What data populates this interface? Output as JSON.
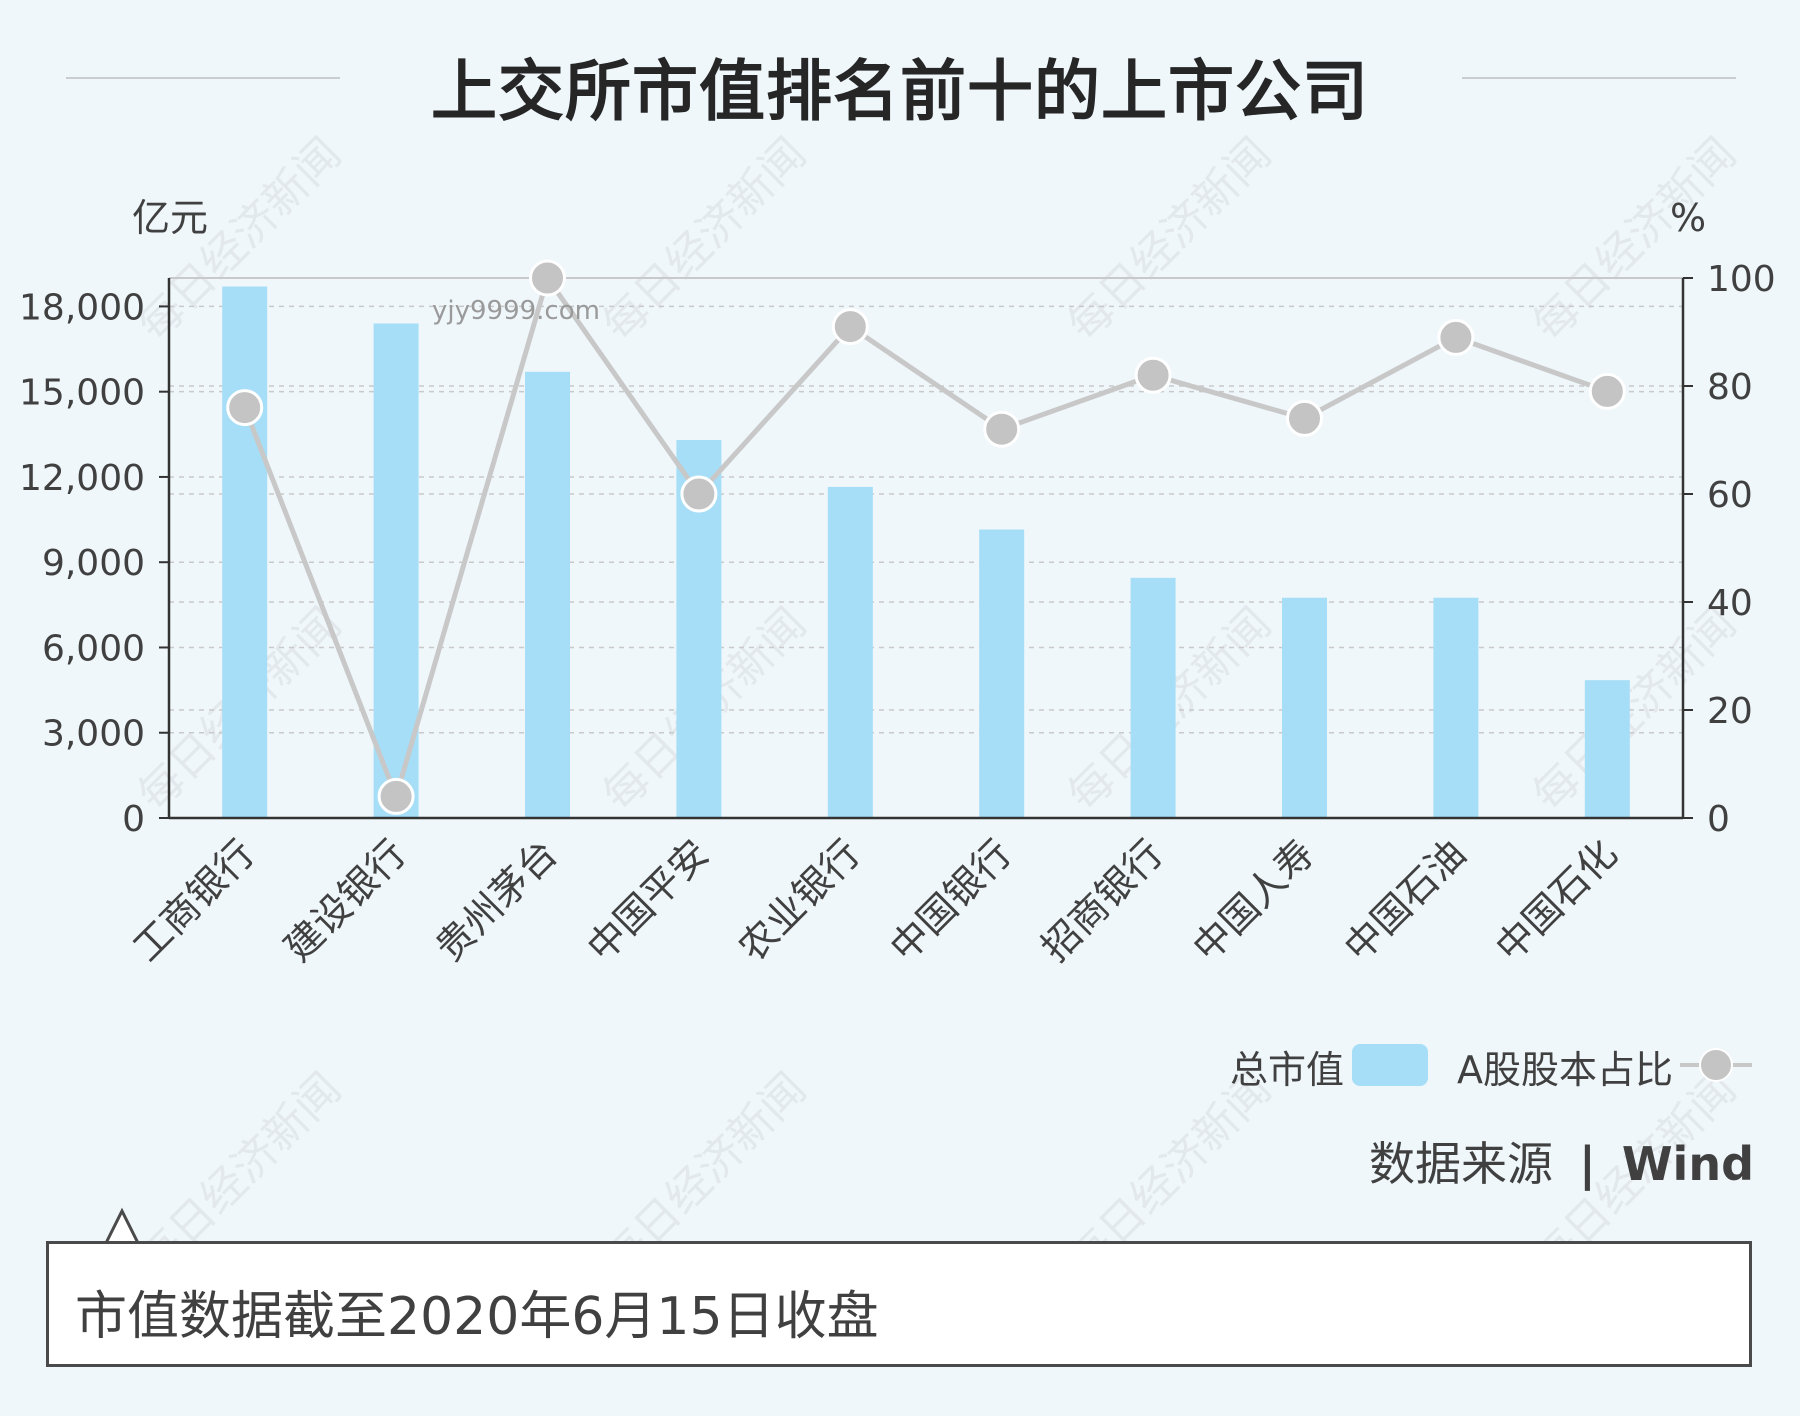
{
  "title": "上交所市值排名前十的上市公司",
  "watermark": "每日经济新闻",
  "site_watermark": "yjy9999.com",
  "source": {
    "label": "数据来源",
    "separator": "|",
    "name": "Wind"
  },
  "note": "市值数据截至2020年6月15日收盘",
  "colors": {
    "bar": "#a6def7",
    "line": "#c8c8c8",
    "marker": "#c4c4c4",
    "text": "#404040"
  },
  "chart_data": {
    "type": "bar",
    "categories": [
      "工商银行",
      "建设银行",
      "贵州茅台",
      "中国平安",
      "农业银行",
      "中国银行",
      "招商银行",
      "中国人寿",
      "中国石油",
      "中国石化"
    ],
    "series": [
      {
        "name": "总市值",
        "type": "bar",
        "axis": "left",
        "values": [
          18700,
          17400,
          15700,
          13300,
          11650,
          10150,
          8450,
          7750,
          7750,
          4850
        ]
      },
      {
        "name": "A股股本占比",
        "type": "line",
        "axis": "right",
        "values": [
          76,
          4,
          100,
          60,
          91,
          72,
          82,
          74,
          89,
          79
        ]
      }
    ],
    "ylabel_left": "亿元",
    "ylabel_right": "%",
    "ylim_left": [
      0,
      19000
    ],
    "ylim_right": [
      0,
      100
    ],
    "yticks_left": [
      "0",
      "3,000",
      "6,000",
      "9,000",
      "12,000",
      "15,000",
      "18,000"
    ],
    "yticks_right": [
      "0",
      "20",
      "40",
      "60",
      "80",
      "100"
    ],
    "legend_position": "bottom-right",
    "grid": true
  }
}
